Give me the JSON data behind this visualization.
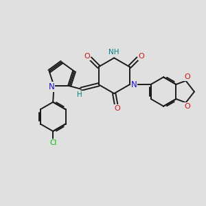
{
  "bg_color": "#e0e0e0",
  "bond_color": "#1a1a1a",
  "N_color": "#1414cc",
  "O_color": "#cc1414",
  "Cl_color": "#00bb00",
  "H_color": "#008080",
  "fig_width": 3.0,
  "fig_height": 3.0,
  "dpi": 100,
  "xlim": [
    0,
    10
  ],
  "ylim": [
    0,
    10
  ]
}
